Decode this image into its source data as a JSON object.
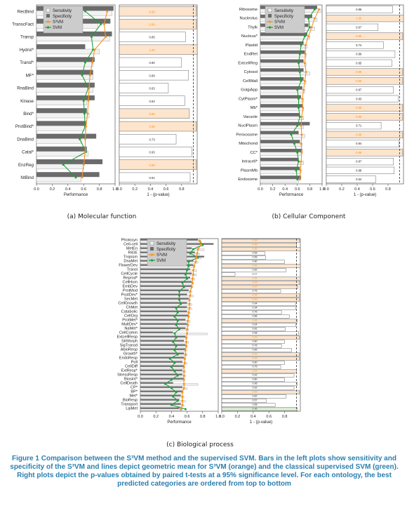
{
  "colors": {
    "sensitivity": "#f2f2f2",
    "specificity": "#6b6b6b",
    "s3vm": "#f7941d",
    "svm": "#1f9e3a",
    "highlight_orange": "#fde4cc",
    "highlight_green": "#d9ebd0",
    "caption": "#2a7fb0"
  },
  "legend": {
    "sensitivity": "Sensitivity",
    "specificity": "Specificity",
    "s3vm": "S³VM",
    "svm": "SVM"
  },
  "caption": {
    "figure_label": "Figure 1",
    "text": "Comparison between the S³VM method and the supervised SVM. Bars in the left plots show sensitivity and specificity of the S³VM and lines depict geometric mean for S³VM (orange) and the classical supervised SVM (green). Right plots depict the p-values obtained by paired t-tests at a 95% significance level. For each ontology, the best predicted categories are ordered from top to bottom"
  },
  "chart_data": [
    {
      "id": "a",
      "type": "bar",
      "subtitle": "(a) Molecular function",
      "xlabel": "Performance",
      "xlabel_right": "1 - (p-value)",
      "xlim": [
        0,
        1
      ],
      "xticks": [
        "0.0",
        "0.2",
        "0.4",
        "0.6",
        "0.8",
        "1.0"
      ],
      "xticks_right": [
        "0.0",
        "0.2",
        "0.4",
        "0.6",
        "0.8"
      ],
      "categories": [
        "RecBind",
        "TranscFact",
        "Transp",
        "Hydrol*",
        "Transf*",
        "MF*",
        "RnaBind",
        "Kinase",
        "Bind*",
        "ProtBind*",
        "DnaBind",
        "Catal*",
        "EnzReg",
        "NtBind"
      ],
      "sensitivity": [
        0.96,
        0.78,
        0.93,
        0.8,
        0.72,
        0.72,
        0.72,
        0.64,
        0.67,
        0.62,
        0.58,
        0.66,
        0.6,
        0.57
      ],
      "specificity": [
        0.98,
        0.94,
        0.96,
        0.62,
        0.74,
        0.72,
        0.74,
        0.74,
        0.64,
        0.63,
        0.76,
        0.64,
        0.84,
        0.8
      ],
      "s3vm": [
        0.9,
        0.86,
        0.88,
        0.74,
        0.71,
        0.68,
        0.67,
        0.66,
        0.65,
        0.63,
        0.62,
        0.62,
        0.6,
        0.58
      ],
      "svm": [
        0.62,
        0.82,
        0.7,
        0.72,
        0.62,
        0.58,
        0.66,
        0.6,
        0.61,
        0.62,
        0.55,
        0.63,
        0.34,
        0.5
      ],
      "pvalues": [
        "0.99",
        "0.99",
        "0.85",
        "1.00",
        "0.80",
        "0.89",
        "0.63",
        "0.84",
        "0.90",
        "0.99",
        "0.73",
        "0.93",
        "0.99",
        "0.91"
      ],
      "pvalue_fraction": [
        0.99,
        0.99,
        0.85,
        1.0,
        0.8,
        0.89,
        0.63,
        0.84,
        0.9,
        0.99,
        0.73,
        0.93,
        0.99,
        0.91
      ],
      "highlight": [
        "orange",
        "orange",
        "",
        "orange",
        "",
        "",
        "",
        "",
        "orange",
        "orange",
        "",
        "",
        "orange",
        ""
      ]
    },
    {
      "id": "b",
      "type": "bar",
      "subtitle": "(b) Cellular Component",
      "xlabel": "Performance",
      "xlabel_right": "1 - (p-value)",
      "xlim": [
        0,
        1
      ],
      "xticks": [
        "0.0",
        "0.2",
        "0.4",
        "0.6",
        "0.8",
        "1.0"
      ],
      "xticks_right": [
        "0.0",
        "0.2",
        "0.4",
        "0.6",
        "0.8"
      ],
      "categories": [
        "Ribosome",
        "Nucleolus",
        "Thylk",
        "Nucleus*",
        "Plastid",
        "EndRet",
        "ExtcellReg",
        "Cytosol",
        "CellWall",
        "GolgiApp",
        "CytPlasm*",
        "Mb*",
        "Vacuole",
        "NuclPlasm",
        "Perixosome",
        "Mitochond",
        "CC*",
        "Intracell*",
        "PlasmMb",
        "Endosome"
      ],
      "sensitivity": [
        0.98,
        0.92,
        0.88,
        0.8,
        0.76,
        0.74,
        0.74,
        0.8,
        0.74,
        0.72,
        0.7,
        0.7,
        0.7,
        0.7,
        0.72,
        0.68,
        0.66,
        0.7,
        0.66,
        0.62
      ],
      "specificity": [
        0.92,
        0.84,
        0.78,
        0.76,
        0.7,
        0.72,
        0.7,
        0.7,
        0.7,
        0.68,
        0.66,
        0.68,
        0.64,
        0.8,
        0.62,
        0.64,
        0.68,
        0.62,
        0.64,
        0.66
      ],
      "s3vm": [
        0.95,
        0.88,
        0.83,
        0.78,
        0.73,
        0.73,
        0.72,
        0.74,
        0.72,
        0.7,
        0.68,
        0.69,
        0.67,
        0.66,
        0.67,
        0.66,
        0.67,
        0.66,
        0.65,
        0.64
      ],
      "svm": [
        0.88,
        0.78,
        0.8,
        0.72,
        0.66,
        0.64,
        0.62,
        0.64,
        0.66,
        0.6,
        0.62,
        0.62,
        0.64,
        0.6,
        0.5,
        0.55,
        0.6,
        0.62,
        0.58,
        0.6
      ],
      "pvalues": [
        "0.86",
        "1.00",
        "0.67",
        "0.99",
        "0.74",
        "0.89",
        "0.85",
        "0.99",
        "0.99",
        "0.87",
        "0.93",
        "0.99",
        "0.99",
        "0.71",
        "0.99",
        "0.94",
        "0.99",
        "0.87",
        "0.88",
        "0.64"
      ],
      "pvalue_fraction": [
        0.86,
        1.0,
        0.67,
        0.99,
        0.74,
        0.89,
        0.85,
        0.99,
        0.99,
        0.87,
        0.93,
        0.99,
        0.99,
        0.71,
        0.99,
        0.94,
        0.99,
        0.87,
        0.88,
        0.64
      ],
      "highlight": [
        "",
        "orange",
        "",
        "orange",
        "",
        "",
        "",
        "orange",
        "orange",
        "",
        "",
        "orange",
        "orange",
        "",
        "orange",
        "",
        "orange",
        "",
        "",
        ""
      ]
    },
    {
      "id": "c",
      "type": "bar",
      "subtitle": "(c) Biological process",
      "xlabel": "Performance",
      "xlabel_right": "1 - (p-value)",
      "xlim": [
        0,
        1
      ],
      "xticks": [
        "0.0",
        "0.2",
        "0.4",
        "0.6",
        "0.8",
        "1.0"
      ],
      "xticks_right": [
        "0.0",
        "0.2",
        "0.4",
        "0.6",
        "0.8"
      ],
      "categories": [
        "Photosyn",
        "Cell-cell",
        "MetEn",
        "RiGE",
        "Tropism",
        "DnaMet",
        "FlowerDev",
        "Transl",
        "CellCycle",
        "Reprod*",
        "CellHom",
        "EmbDev",
        "ProtMod",
        "PostDev*",
        "SecMet",
        "CellGrowth",
        "ChMet",
        "Catabolic",
        "CellOrg",
        "ProtMet*",
        "MultDev*",
        "NaMet*",
        "CellComm",
        "ExtcellResp",
        "StrMorph",
        "SigTransd",
        "AbioResp",
        "Growth*",
        "EndoResp",
        "Poll",
        "CellDiff",
        "ExtResp*",
        "StressResp",
        "Biosint*",
        "CellDeath",
        "CP*",
        "BP*",
        "Met*",
        "BioResp",
        "Transport",
        "LipMet"
      ],
      "sensitivity": [
        0.78,
        0.8,
        0.82,
        0.76,
        0.78,
        0.74,
        0.7,
        0.72,
        0.72,
        0.7,
        0.68,
        0.66,
        0.66,
        0.68,
        0.64,
        0.66,
        0.66,
        0.64,
        0.62,
        0.64,
        0.62,
        0.62,
        0.86,
        0.6,
        0.62,
        0.6,
        0.58,
        0.6,
        0.58,
        0.6,
        0.56,
        0.58,
        0.58,
        0.56,
        0.74,
        0.6,
        0.54,
        0.56,
        0.58,
        0.56,
        0.54
      ],
      "specificity": [
        0.74,
        0.94,
        0.66,
        0.7,
        0.82,
        0.68,
        0.68,
        0.64,
        0.66,
        0.64,
        0.66,
        0.66,
        0.62,
        0.6,
        0.62,
        0.6,
        0.6,
        0.6,
        0.62,
        0.58,
        0.6,
        0.58,
        0.42,
        0.58,
        0.56,
        0.58,
        0.58,
        0.56,
        0.56,
        0.54,
        0.56,
        0.54,
        0.54,
        0.56,
        0.42,
        0.54,
        0.54,
        0.52,
        0.5,
        0.52,
        0.5
      ],
      "s3vm": [
        0.76,
        0.78,
        0.74,
        0.73,
        0.72,
        0.71,
        0.69,
        0.68,
        0.68,
        0.67,
        0.67,
        0.66,
        0.64,
        0.64,
        0.63,
        0.63,
        0.63,
        0.62,
        0.62,
        0.61,
        0.61,
        0.6,
        0.6,
        0.59,
        0.59,
        0.59,
        0.58,
        0.58,
        0.57,
        0.57,
        0.56,
        0.56,
        0.56,
        0.56,
        0.56,
        0.56,
        0.54,
        0.54,
        0.54,
        0.54,
        0.52
      ],
      "svm": [
        0.76,
        0.8,
        0.68,
        0.64,
        0.74,
        0.62,
        0.62,
        0.6,
        0.58,
        0.6,
        0.54,
        0.56,
        0.5,
        0.5,
        0.5,
        0.52,
        0.46,
        0.48,
        0.44,
        0.48,
        0.46,
        0.5,
        0.44,
        0.46,
        0.42,
        0.46,
        0.44,
        0.48,
        0.38,
        0.44,
        0.4,
        0.44,
        0.48,
        0.4,
        0.32,
        0.4,
        0.46,
        0.42,
        0.48,
        0.4,
        0.58
      ],
      "pvalues": [
        "0.99",
        "0.95",
        "1.00",
        "0.55",
        "0.56",
        "0.80",
        "1.00",
        "0.82",
        "0.17",
        "1.00",
        "0.99",
        "0.97",
        "0.75",
        "0.99",
        "0.99",
        "0.94",
        "0.94",
        "0.76",
        "0.86",
        "0.96",
        "0.94",
        "0.81",
        "0.98",
        "0.99",
        "0.80",
        "0.76",
        "0.89",
        "0.99",
        "0.99",
        "0.80",
        "0.75",
        "0.95",
        "0.92",
        "0.80",
        "0.96",
        "0.92",
        "0.99",
        "0.82",
        "0.57",
        "0.68",
        "0.96"
      ],
      "pvalue_fraction": [
        0.99,
        0.95,
        1.0,
        0.55,
        0.56,
        0.8,
        1.0,
        0.82,
        0.17,
        1.0,
        0.99,
        0.97,
        0.75,
        0.99,
        0.99,
        0.94,
        0.94,
        0.76,
        0.86,
        0.96,
        0.94,
        0.81,
        0.98,
        0.99,
        0.8,
        0.76,
        0.89,
        0.99,
        0.99,
        0.8,
        0.75,
        0.95,
        0.92,
        0.8,
        0.96,
        0.92,
        0.99,
        0.82,
        0.57,
        0.68,
        0.96
      ],
      "highlight": [
        "orange",
        "orange",
        "orange",
        "",
        "",
        "",
        "orange",
        "",
        "",
        "orange",
        "orange",
        "orange",
        "",
        "orange",
        "orange",
        "",
        "",
        "",
        "",
        "orange",
        "",
        "",
        "",
        "orange",
        "",
        "",
        "",
        "orange",
        "orange",
        "",
        "",
        "orange",
        "",
        "",
        "",
        "",
        "orange",
        "",
        "",
        "",
        "green"
      ]
    }
  ]
}
